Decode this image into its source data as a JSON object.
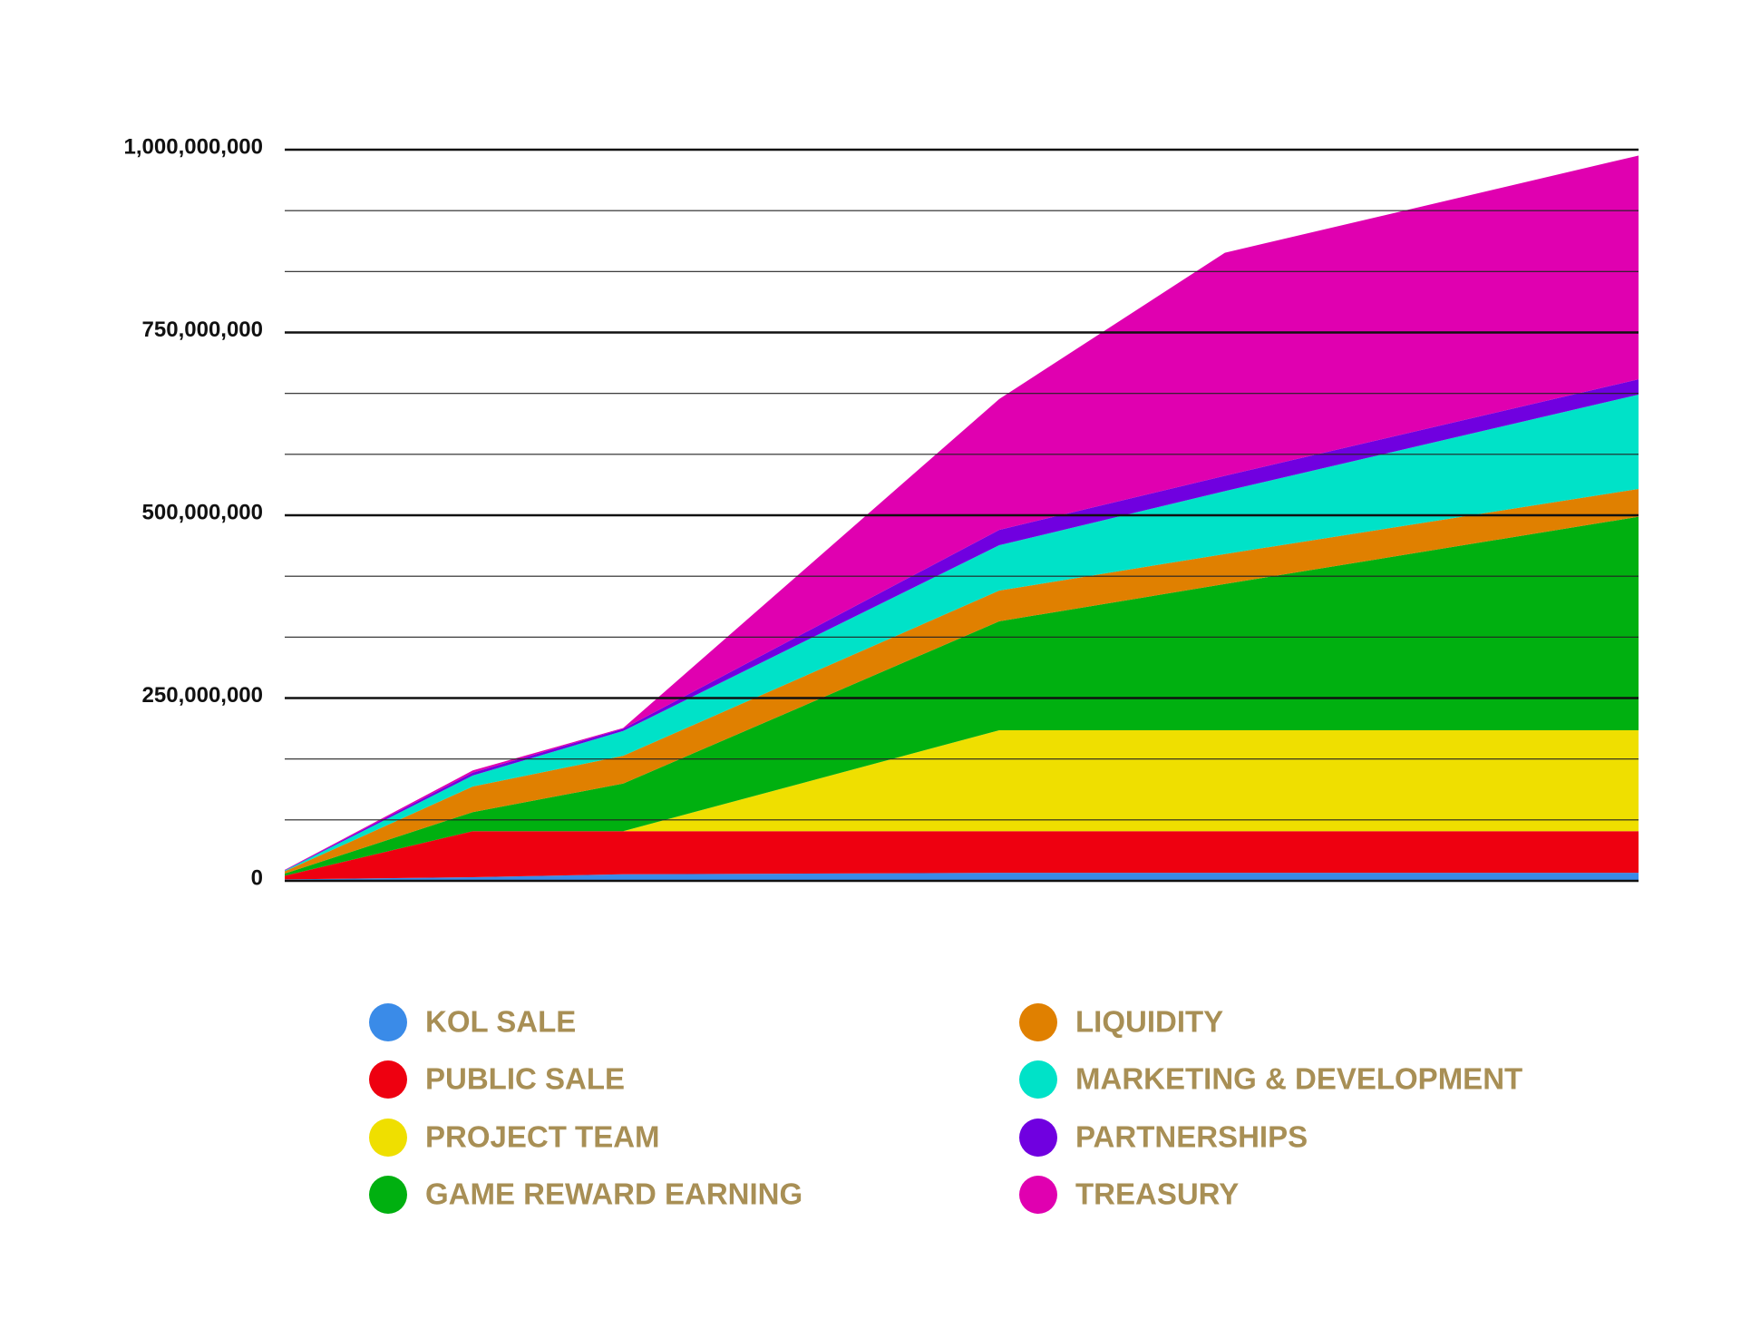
{
  "chart_data": {
    "type": "stacked_area",
    "x": [
      0,
      5,
      9,
      19,
      25,
      36
    ],
    "xlim": [
      0,
      36
    ],
    "ylim": [
      0,
      1000000000
    ],
    "yticks": [
      0,
      {
        "value": 250000000,
        "label": "250,000,000"
      },
      {
        "value": 500000000,
        "label": "500,000,000"
      },
      {
        "value": 750000000,
        "label": "750,000,000"
      },
      {
        "value": 1000000000,
        "label": "1,000,000,000"
      }
    ],
    "minor_yticks": [
      83333333,
      166666667,
      333333333,
      416666667,
      583333333,
      666666667,
      833333333,
      916666667
    ],
    "grid": true,
    "legend": "bottom",
    "series": [
      {
        "name": "KOL SALE",
        "color": "#3a8be8",
        "values": [
          2000000,
          5000000,
          9000000,
          11000000,
          11000000,
          11000000
        ]
      },
      {
        "name": "PUBLIC SALE",
        "color": "#ee0010",
        "values": [
          5000000,
          63000000,
          59000000,
          57000000,
          57000000,
          57000000
        ]
      },
      {
        "name": "PROJECT TEAM",
        "color": "#efdf00",
        "values": [
          0,
          0,
          0,
          138000000,
          138000000,
          138000000
        ]
      },
      {
        "name": "GAME REWARD EARNING",
        "color": "#00b010",
        "values": [
          3000000,
          26000000,
          65000000,
          149000000,
          200000000,
          292000000
        ]
      },
      {
        "name": "LIQUIDITY",
        "color": "#e08000",
        "values": [
          3000000,
          35000000,
          38000000,
          42000000,
          41000000,
          38000000
        ]
      },
      {
        "name": "MARKETING & DEVELOPMENT",
        "color": "#00e2c8",
        "values": [
          1000000,
          15000000,
          34000000,
          62000000,
          86000000,
          129000000
        ]
      },
      {
        "name": "PARTNERSHIPS",
        "color": "#7000e0",
        "values": [
          500000,
          4000000,
          3000000,
          21000000,
          21000000,
          21000000
        ]
      },
      {
        "name": "TREASURY",
        "color": "#e000b0",
        "values": [
          500000,
          3000000,
          1000000,
          179000000,
          305000000,
          306000000
        ]
      }
    ]
  }
}
